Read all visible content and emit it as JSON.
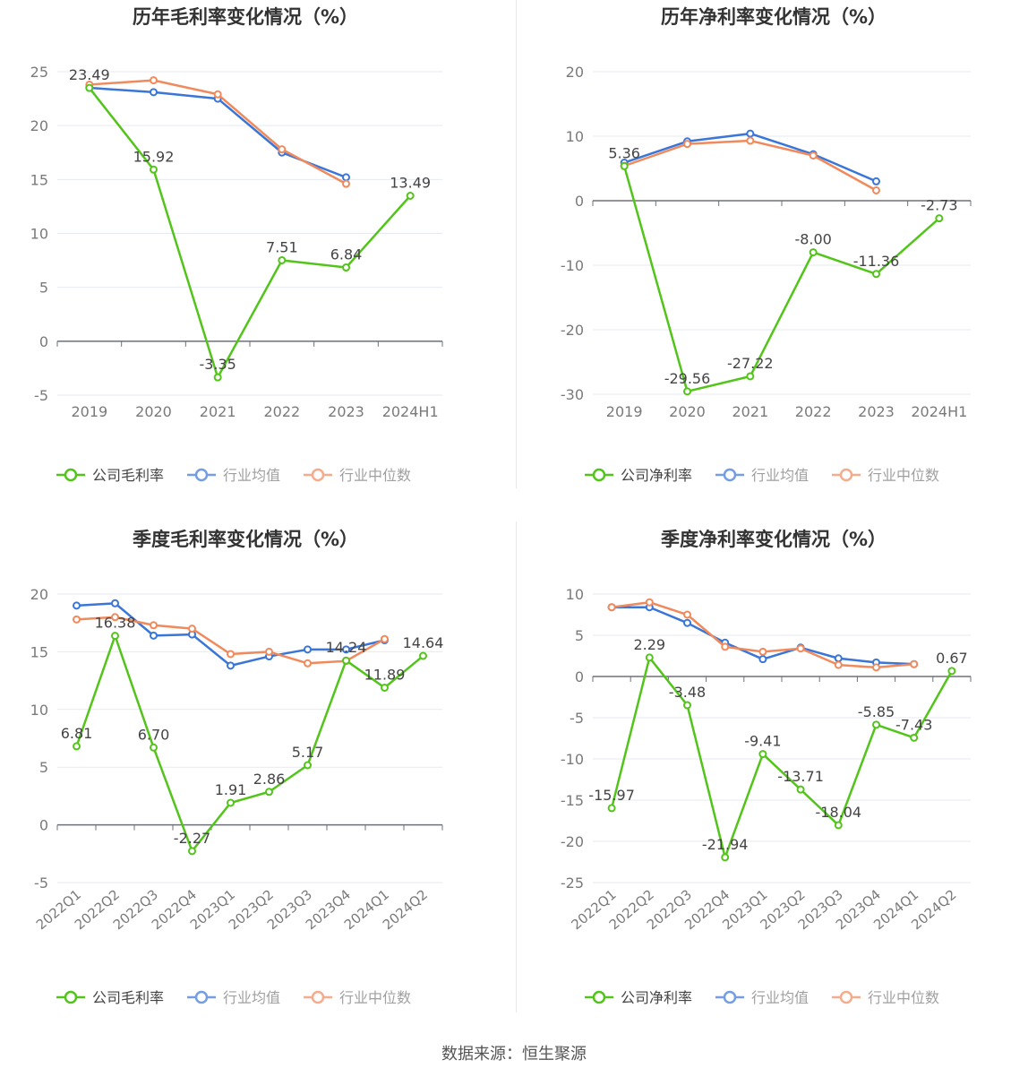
{
  "source_note": "数据来源：恒生聚源",
  "colors": {
    "company": "#52c41a",
    "industry_avg": "#3a75d8",
    "industry_median": "#f08a5d",
    "grid": "#e6e9f0",
    "axis": "#6e7079",
    "label": "#444444",
    "tick": "#7a7a7a"
  },
  "chart_data": [
    {
      "type": "line",
      "title": "历年毛利率变化情况（%）",
      "categories": [
        "2019",
        "2020",
        "2021",
        "2022",
        "2023",
        "2024H1"
      ],
      "ylim": [
        -5,
        25
      ],
      "yticks": [
        25,
        20,
        15,
        10,
        5,
        0,
        -5
      ],
      "grid": true,
      "legend_position": "bottom",
      "x_label_rotated": false,
      "series": [
        {
          "name": "公司毛利率",
          "role": "company",
          "values": [
            23.49,
            15.92,
            -3.35,
            7.51,
            6.84,
            13.49
          ],
          "labels": [
            "23.49",
            "15.92",
            "-3.35",
            "7.51",
            "6.84",
            "13.49"
          ]
        },
        {
          "name": "行业均值",
          "role": "industry_avg",
          "values": [
            23.5,
            23.1,
            22.5,
            17.5,
            15.2,
            null
          ]
        },
        {
          "name": "行业中位数",
          "role": "industry_median",
          "values": [
            23.8,
            24.2,
            22.9,
            17.8,
            14.6,
            null
          ]
        }
      ]
    },
    {
      "type": "line",
      "title": "历年净利率变化情况（%）",
      "categories": [
        "2019",
        "2020",
        "2021",
        "2022",
        "2023",
        "2024H1"
      ],
      "ylim": [
        -30,
        20
      ],
      "yticks": [
        20,
        10,
        0,
        -10,
        -20,
        -30
      ],
      "grid": true,
      "legend_position": "bottom",
      "x_label_rotated": false,
      "series": [
        {
          "name": "公司净利率",
          "role": "company",
          "values": [
            5.36,
            -29.56,
            -27.22,
            -8.0,
            -11.36,
            -2.73
          ],
          "labels": [
            "5.36",
            "-29.56",
            "-27.22",
            "-8.00",
            "-11.36",
            "-2.73"
          ]
        },
        {
          "name": "行业均值",
          "role": "industry_avg",
          "values": [
            5.9,
            9.2,
            10.4,
            7.2,
            3.0,
            null
          ]
        },
        {
          "name": "行业中位数",
          "role": "industry_median",
          "values": [
            5.4,
            8.8,
            9.3,
            7.0,
            1.6,
            null
          ]
        }
      ]
    },
    {
      "type": "line",
      "title": "季度毛利率变化情况（%）",
      "categories": [
        "2022Q1",
        "2022Q2",
        "2022Q3",
        "2022Q4",
        "2023Q1",
        "2023Q2",
        "2023Q3",
        "2023Q4",
        "2024Q1",
        "2024Q2"
      ],
      "ylim": [
        -5,
        20
      ],
      "yticks": [
        20,
        15,
        10,
        5,
        0,
        -5
      ],
      "grid": true,
      "legend_position": "bottom",
      "x_label_rotated": true,
      "series": [
        {
          "name": "公司毛利率",
          "role": "company",
          "values": [
            6.81,
            16.38,
            6.7,
            -2.27,
            1.91,
            2.86,
            5.17,
            14.24,
            11.89,
            14.64
          ],
          "labels": [
            "6.81",
            "16.38",
            "6.70",
            "-2.27",
            "1.91",
            "2.86",
            "5.17",
            "14.24",
            "11.89",
            "14.64"
          ]
        },
        {
          "name": "行业均值",
          "role": "industry_avg",
          "values": [
            19.0,
            19.2,
            16.4,
            16.5,
            13.8,
            14.6,
            15.2,
            15.2,
            16.0,
            null
          ]
        },
        {
          "name": "行业中位数",
          "role": "industry_median",
          "values": [
            17.8,
            18.0,
            17.3,
            17.0,
            14.8,
            15.0,
            14.0,
            14.2,
            16.1,
            null
          ]
        }
      ]
    },
    {
      "type": "line",
      "title": "季度净利率变化情况（%）",
      "categories": [
        "2022Q1",
        "2022Q2",
        "2022Q3",
        "2022Q4",
        "2023Q1",
        "2023Q2",
        "2023Q3",
        "2023Q4",
        "2024Q1",
        "2024Q2"
      ],
      "ylim": [
        -25,
        10
      ],
      "yticks": [
        10,
        5,
        0,
        -5,
        -10,
        -15,
        -20,
        -25
      ],
      "grid": true,
      "legend_position": "bottom",
      "x_label_rotated": true,
      "series": [
        {
          "name": "公司净利率",
          "role": "company",
          "values": [
            -15.97,
            2.29,
            -3.48,
            -21.94,
            -9.41,
            -13.71,
            -18.04,
            -5.85,
            -7.43,
            0.67
          ],
          "labels": [
            "-15.97",
            "2.29",
            "-3.48",
            "-21.94",
            "-9.41",
            "-13.71",
            "-18.04",
            "-5.85",
            "-7.43",
            "0.67"
          ]
        },
        {
          "name": "行业均值",
          "role": "industry_avg",
          "values": [
            8.4,
            8.4,
            6.5,
            4.1,
            2.1,
            3.5,
            2.2,
            1.7,
            1.5,
            null
          ]
        },
        {
          "name": "行业中位数",
          "role": "industry_median",
          "values": [
            8.4,
            9.0,
            7.5,
            3.6,
            3.0,
            3.4,
            1.4,
            1.1,
            1.5,
            null
          ]
        }
      ]
    }
  ]
}
